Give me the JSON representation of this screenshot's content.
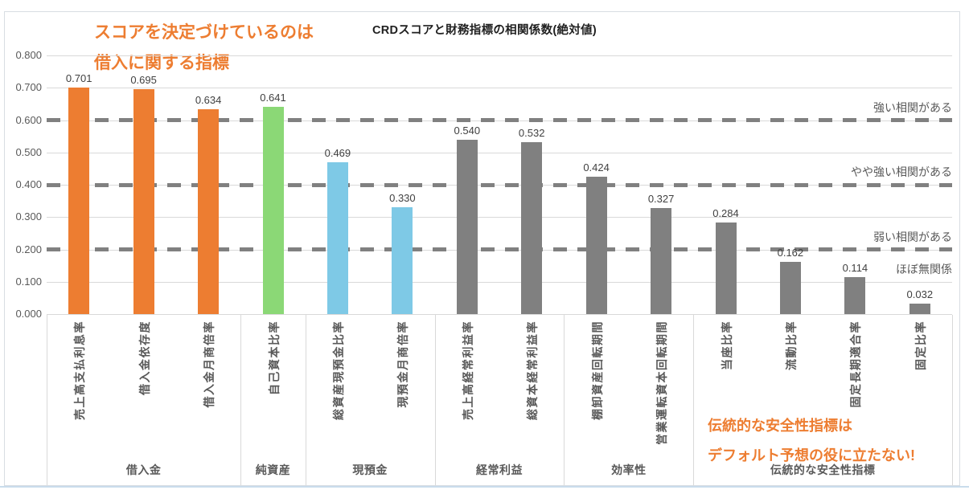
{
  "title": "CRDスコアと財務指標の相関係数(絶対値)",
  "annotations": {
    "top": {
      "line1": "スコアを決定づけているのは",
      "line2": "借入に関する指標"
    },
    "bottom": {
      "line1": "伝統的な安全性指標は",
      "line2": "デフォルト予想の役に立たない!"
    }
  },
  "colors": {
    "accent_orange": "#ED7D31",
    "bar_orange": "#ED7D31",
    "bar_green": "#8BD876",
    "bar_blue": "#7EC9E6",
    "bar_gray": "#808080",
    "gridline": "#D9D9D9",
    "dashed_line": "#808080",
    "axis_text": "#595959",
    "value_text": "#404040",
    "title_text": "#1f1f1f"
  },
  "chart_data": {
    "type": "bar",
    "title": "CRDスコアと財務指標の相関係数(絶対値)",
    "xlabel": "",
    "ylabel": "",
    "ylim": [
      0,
      0.8
    ],
    "grid": "horizontal",
    "legend": "none",
    "y_ticks": [
      {
        "value": 0.0,
        "label": "0.000"
      },
      {
        "value": 0.1,
        "label": "0.100"
      },
      {
        "value": 0.2,
        "label": "0.200"
      },
      {
        "value": 0.3,
        "label": "0.300"
      },
      {
        "value": 0.4,
        "label": "0.400"
      },
      {
        "value": 0.5,
        "label": "0.500"
      },
      {
        "value": 0.6,
        "label": "0.600"
      },
      {
        "value": 0.7,
        "label": "0.700"
      },
      {
        "value": 0.8,
        "label": "0.800"
      }
    ],
    "reference_lines": [
      {
        "value": 0.6,
        "label": "強い相関がある",
        "dashed": true
      },
      {
        "value": 0.4,
        "label": "やや強い相関がある",
        "dashed": true
      },
      {
        "value": 0.2,
        "label": "弱い相関がある",
        "dashed": true
      },
      {
        "value": 0.145,
        "label": "ほぼ無関係",
        "dashed": false
      }
    ],
    "groups": [
      {
        "label": "借入金",
        "color_key": "bar_orange",
        "bars": [
          {
            "category": "売上高支払利息率",
            "value": 0.701,
            "label": "0.701"
          },
          {
            "category": "借入金依存度",
            "value": 0.695,
            "label": "0.695"
          },
          {
            "category": "借入金月商倍率",
            "value": 0.634,
            "label": "0.634"
          }
        ]
      },
      {
        "label": "純資産",
        "color_key": "bar_green",
        "bars": [
          {
            "category": "自己資本比率",
            "value": 0.641,
            "label": "0.641"
          }
        ]
      },
      {
        "label": "現預金",
        "color_key": "bar_blue",
        "bars": [
          {
            "category": "総資産現預金比率",
            "value": 0.469,
            "label": "0.469"
          },
          {
            "category": "現預金月商倍率",
            "value": 0.33,
            "label": "0.330"
          }
        ]
      },
      {
        "label": "経常利益",
        "color_key": "bar_gray",
        "bars": [
          {
            "category": "売上高経常利益率",
            "value": 0.54,
            "label": "0.540"
          },
          {
            "category": "総資本経常利益率",
            "value": 0.532,
            "label": "0.532"
          }
        ]
      },
      {
        "label": "効率性",
        "color_key": "bar_gray",
        "bars": [
          {
            "category": "棚卸資産回転期間",
            "value": 0.424,
            "label": "0.424"
          },
          {
            "category": "営業運転資本回転期間",
            "value": 0.327,
            "label": "0.327"
          }
        ]
      },
      {
        "label": "伝統的な安全性指標",
        "color_key": "bar_gray",
        "bars": [
          {
            "category": "当座比率",
            "value": 0.284,
            "label": "0.284"
          },
          {
            "category": "流動比率",
            "value": 0.162,
            "label": "0.162"
          },
          {
            "category": "固定長期適合率",
            "value": 0.114,
            "label": "0.114"
          },
          {
            "category": "固定比率",
            "value": 0.032,
            "label": "0.032"
          }
        ]
      }
    ]
  }
}
